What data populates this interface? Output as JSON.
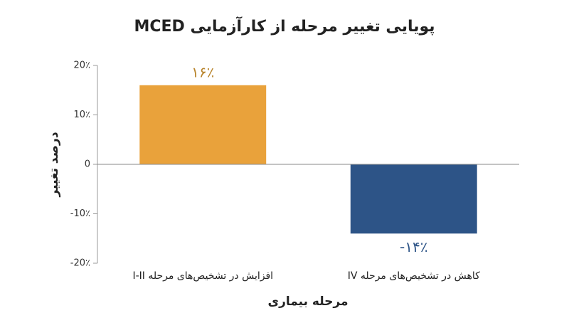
{
  "chart_data": {
    "type": "bar",
    "title": "پویایی تغییر مرحله از کارآزمایی MCED",
    "y_label": "درصد تغییر",
    "x_label": "مرحله بیماری",
    "categories": [
      "افزایش در تشخیص‌های مرحله I-II",
      "کاهش در تشخیص‌های مرحله IV"
    ],
    "values": [
      16,
      -14
    ],
    "value_labels": [
      "۱۶٪",
      "-۱۴٪"
    ],
    "colors": [
      "#e9a23b",
      "#2d5487"
    ],
    "label_colors": [
      "#b8842b",
      "#2d5487"
    ],
    "ylim": [
      -20,
      20
    ],
    "yticks": [
      {
        "value": -20,
        "label": "-20٪"
      },
      {
        "value": -10,
        "label": "-10٪"
      },
      0,
      {
        "value": 10,
        "label": "10٪"
      },
      {
        "value": 20,
        "label": "20٪"
      }
    ]
  }
}
